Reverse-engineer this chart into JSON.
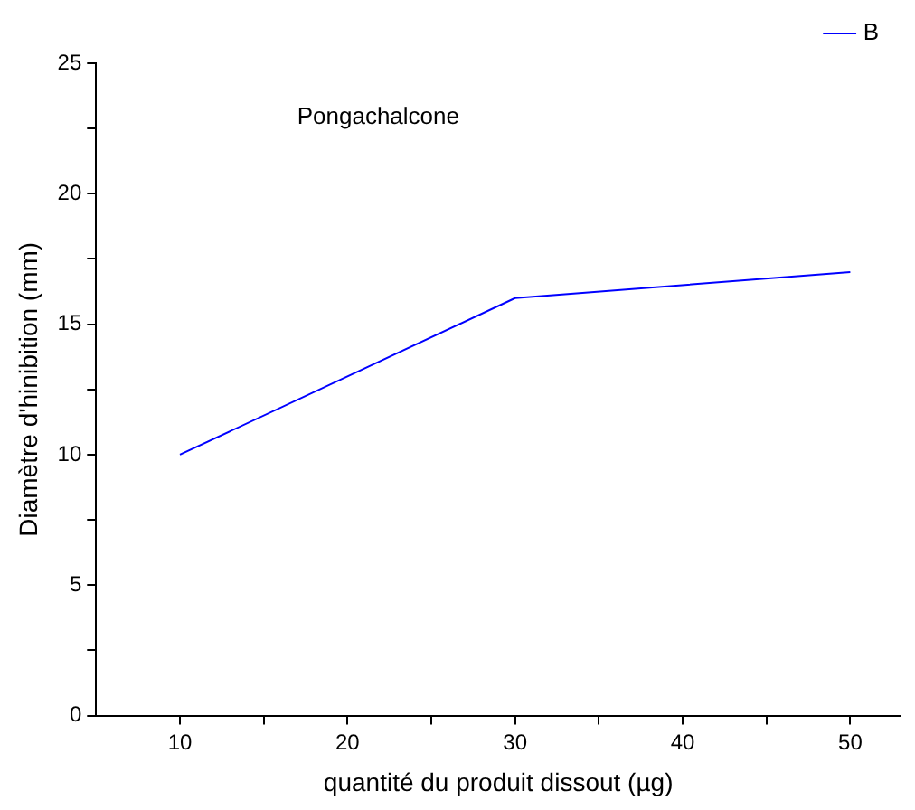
{
  "chart_data": {
    "type": "line",
    "xlabel": "quantité du produit dissout (µg)",
    "ylabel": "Diamètre d'hinibition (mm)",
    "annotations": [
      "Pongachalcone"
    ],
    "x": [
      10,
      30,
      50
    ],
    "series": [
      {
        "name": "B",
        "color": "#0000ff",
        "values": [
          10,
          16,
          17
        ]
      }
    ],
    "xlim": [
      5,
      53
    ],
    "xticks": [
      10,
      {
        "value": 15,
        "label": null
      },
      20,
      {
        "value": 25,
        "label": null
      },
      30,
      {
        "value": 35,
        "label": null
      },
      40,
      {
        "value": 45,
        "label": null
      },
      50
    ],
    "ylim": [
      0,
      25
    ],
    "yticks": [
      0,
      {
        "value": 2.5,
        "label": null
      },
      5,
      {
        "value": 7.5,
        "label": null
      },
      10,
      {
        "value": 12.5,
        "label": null
      },
      15,
      {
        "value": 17.5,
        "label": null
      },
      20,
      {
        "value": 22.5,
        "label": null
      },
      25
    ],
    "grid": false,
    "legend": "top right",
    "marker": "none",
    "line_style": "solid"
  }
}
